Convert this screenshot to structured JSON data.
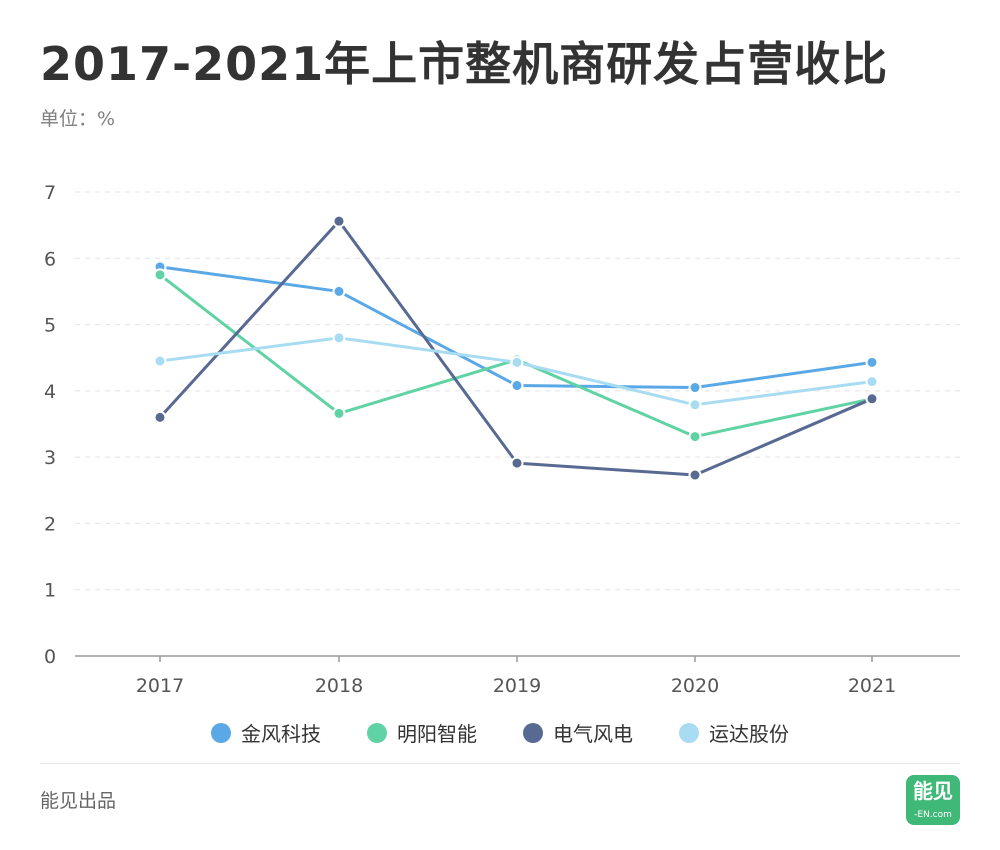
{
  "header": {
    "title": "2017-2021年上市整机商研发占营收比",
    "unit": "单位：%"
  },
  "footer": {
    "source": "能见出品",
    "logo_text": "能见",
    "logo_sub": "-EN.com"
  },
  "chart_data": {
    "type": "line",
    "title": "2017-2021年上市整机商研发占营收比",
    "xlabel": "",
    "ylabel": "",
    "categories": [
      "2017",
      "2018",
      "2019",
      "2020",
      "2021"
    ],
    "y_ticks": [
      "0",
      "1",
      "2",
      "3",
      "4",
      "5",
      "6",
      "7"
    ],
    "ylim": [
      0,
      7
    ],
    "grid": true,
    "legend_position": "bottom",
    "series": [
      {
        "name": "金风科技",
        "color": "#5aa9e6",
        "values": [
          5.87,
          5.5,
          4.08,
          4.05,
          4.43
        ]
      },
      {
        "name": "明阳智能",
        "color": "#5fd3a4",
        "values": [
          5.75,
          3.66,
          4.47,
          3.31,
          3.88
        ]
      },
      {
        "name": "电气风电",
        "color": "#586a92",
        "values": [
          3.6,
          6.56,
          2.91,
          2.73,
          3.88
        ]
      },
      {
        "name": "运达股份",
        "color": "#a8dcf2",
        "values": [
          4.45,
          4.8,
          4.43,
          3.79,
          4.14
        ]
      }
    ]
  }
}
